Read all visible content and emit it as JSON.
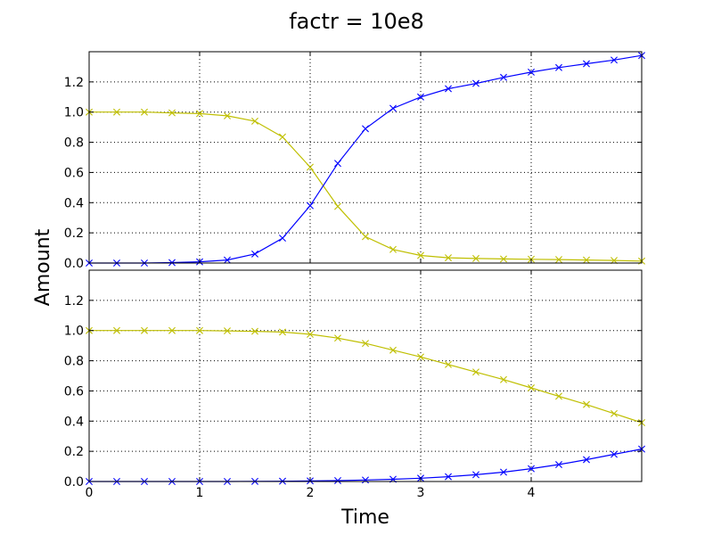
{
  "chart_data": {
    "type": "line",
    "title": "factr = 10e8",
    "xlabel": "Time",
    "ylabel": "Amount",
    "xlim": [
      0,
      5
    ],
    "ylim": [
      0,
      1.4
    ],
    "xticks": [
      0,
      1,
      2,
      3,
      4
    ],
    "yticks": [
      0.0,
      0.2,
      0.4,
      0.6,
      0.8,
      1.0,
      1.2
    ],
    "grid": true,
    "marker": "x",
    "colors": {
      "yellow": "#bfbf00",
      "blue": "#0000ff"
    },
    "panels": [
      {
        "series": [
          {
            "color": "#bfbf00",
            "x": [
              0,
              0.25,
              0.5,
              0.75,
              1.0,
              1.25,
              1.5,
              1.75,
              2.0,
              2.25,
              2.5,
              2.75,
              3.0,
              3.25,
              3.5,
              3.75,
              4.0,
              4.25,
              4.5,
              4.75,
              5.0
            ],
            "y": [
              1.0,
              1.0,
              1.0,
              0.995,
              0.99,
              0.975,
              0.94,
              0.835,
              0.635,
              0.375,
              0.175,
              0.09,
              0.05,
              0.035,
              0.03,
              0.027,
              0.025,
              0.023,
              0.02,
              0.017,
              0.013
            ]
          },
          {
            "color": "#0000ff",
            "x": [
              0,
              0.25,
              0.5,
              0.75,
              1.0,
              1.25,
              1.5,
              1.75,
              2.0,
              2.25,
              2.5,
              2.75,
              3.0,
              3.25,
              3.5,
              3.75,
              4.0,
              4.25,
              4.5,
              4.75,
              5.0
            ],
            "y": [
              0.0,
              0.0,
              0.0,
              0.003,
              0.008,
              0.02,
              0.06,
              0.165,
              0.38,
              0.66,
              0.89,
              1.025,
              1.1,
              1.155,
              1.19,
              1.23,
              1.265,
              1.295,
              1.32,
              1.345,
              1.375
            ]
          }
        ]
      },
      {
        "series": [
          {
            "color": "#bfbf00",
            "x": [
              0,
              0.25,
              0.5,
              0.75,
              1.0,
              1.25,
              1.5,
              1.75,
              2.0,
              2.25,
              2.5,
              2.75,
              3.0,
              3.25,
              3.5,
              3.75,
              4.0,
              4.25,
              4.5,
              4.75,
              5.0
            ],
            "y": [
              1.0,
              1.0,
              1.0,
              1.0,
              1.0,
              0.998,
              0.995,
              0.99,
              0.975,
              0.95,
              0.915,
              0.87,
              0.825,
              0.775,
              0.725,
              0.675,
              0.62,
              0.565,
              0.51,
              0.45,
              0.39
            ]
          },
          {
            "color": "#0000ff",
            "x": [
              0,
              0.25,
              0.5,
              0.75,
              1.0,
              1.25,
              1.5,
              1.75,
              2.0,
              2.25,
              2.5,
              2.75,
              3.0,
              3.25,
              3.5,
              3.75,
              4.0,
              4.25,
              4.5,
              4.75,
              5.0
            ],
            "y": [
              0.0,
              0.0,
              0.0,
              0.0,
              0.0,
              0.0,
              0.001,
              0.002,
              0.004,
              0.006,
              0.01,
              0.015,
              0.022,
              0.032,
              0.045,
              0.062,
              0.085,
              0.112,
              0.145,
              0.18,
              0.215
            ]
          }
        ]
      }
    ]
  }
}
